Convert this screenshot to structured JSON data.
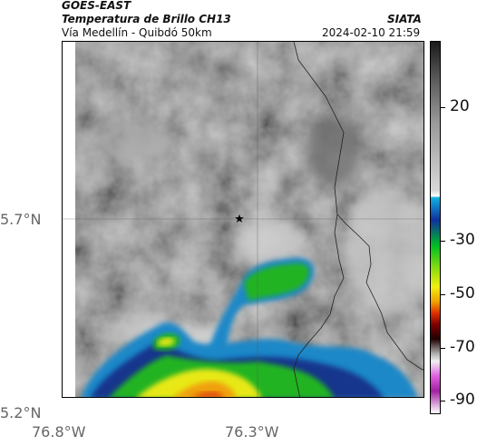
{
  "header": {
    "satellite": "GOES-EAST",
    "product": "Temperatura de Brillo CH13",
    "region": "Vía Medellín - Quibdó 50km",
    "org": "SIATA",
    "timestamp": "2024-02-10 21:59"
  },
  "map": {
    "lat_labels": [
      "5.7°N",
      "5.2°N"
    ],
    "lon_labels": [
      "76.8°W",
      "76.3°W"
    ],
    "marker_icon": "star-icon",
    "colorbar_labels": [
      "20",
      "-30",
      "-50",
      "-70",
      "-90"
    ],
    "colorbar_values": [
      20,
      -30,
      -50,
      -70,
      -90
    ],
    "colorbar_range": [
      -95,
      45
    ]
  }
}
